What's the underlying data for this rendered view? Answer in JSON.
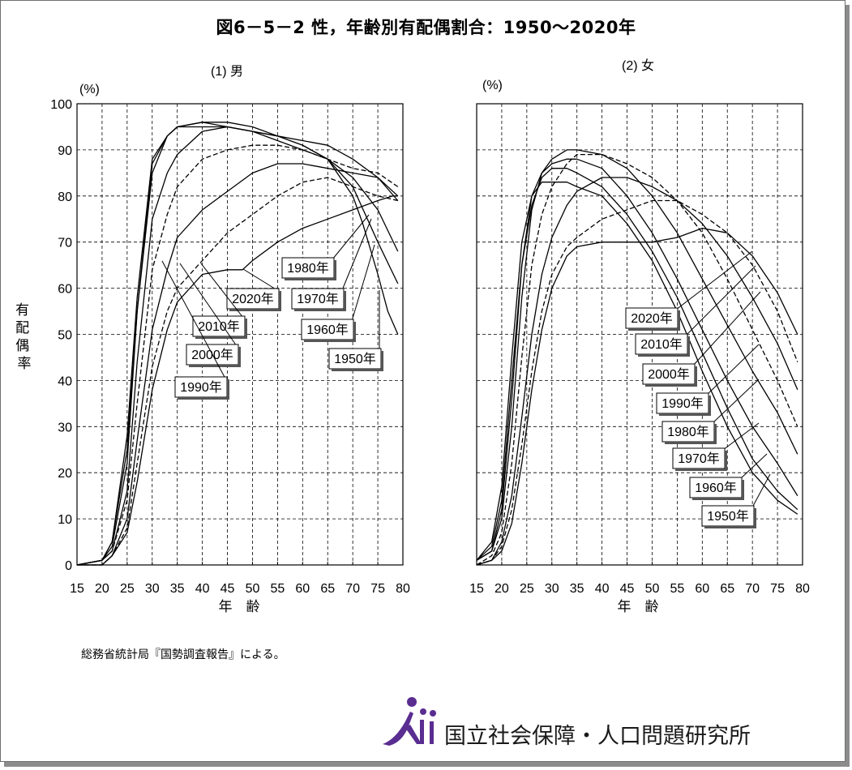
{
  "title": "図6－5－2 性，年齢別有配偶割合：1950～2020年",
  "source_note": "総務省統計局『国勢調査報告』による。",
  "organization": "国立社会保障・人口問題研究所",
  "y_axis_title": "有配偶率",
  "colors": {
    "line": "#000000",
    "grid": "#000000",
    "frame_shadow": "#8c8c8c",
    "logo": "#5a2d91"
  },
  "chart_data": [
    {
      "type": "line",
      "panel_title": "(1) 男",
      "unit_label": "(%)",
      "xlabel": "年　齢",
      "ylabel": "有配偶率",
      "xlim": [
        15,
        80
      ],
      "ylim": [
        0,
        100
      ],
      "x_ticks": [
        15,
        20,
        25,
        30,
        35,
        40,
        45,
        50,
        55,
        60,
        65,
        70,
        75,
        80
      ],
      "y_ticks": [
        0,
        10,
        20,
        30,
        40,
        50,
        60,
        70,
        80,
        90,
        100
      ],
      "grid": true,
      "series": [
        {
          "name": "1950年",
          "style": "solid",
          "x": [
            15,
            20,
            22,
            25,
            27,
            30,
            33,
            35,
            40,
            45,
            50,
            55,
            60,
            65,
            70,
            72,
            75,
            77,
            79
          ],
          "y": [
            0,
            1,
            5,
            28,
            58,
            88,
            93,
            95,
            95,
            95,
            94,
            93,
            91,
            88,
            80,
            74,
            63,
            55,
            50
          ]
        },
        {
          "name": "1960年",
          "style": "solid",
          "x": [
            15,
            20,
            22,
            25,
            27,
            30,
            33,
            35,
            40,
            45,
            50,
            55,
            60,
            65,
            70,
            75,
            79
          ],
          "y": [
            0,
            1,
            5,
            25,
            55,
            85,
            93,
            95,
            96,
            96,
            95,
            93,
            91,
            88,
            82,
            70,
            61
          ]
        },
        {
          "name": "1970年",
          "style": "solid",
          "x": [
            15,
            20,
            22,
            25,
            27,
            30,
            33,
            35,
            40,
            45,
            50,
            55,
            60,
            65,
            70,
            75,
            79
          ],
          "y": [
            0,
            1,
            4,
            22,
            55,
            87,
            93,
            95,
            96,
            95,
            94,
            92,
            90,
            88,
            84,
            77,
            68
          ]
        },
        {
          "name": "1980年",
          "style": "solid",
          "x": [
            15,
            20,
            22,
            25,
            27,
            30,
            33,
            35,
            40,
            45,
            50,
            55,
            60,
            65,
            70,
            75,
            79
          ],
          "y": [
            0,
            1,
            3,
            16,
            44,
            75,
            85,
            89,
            94,
            95,
            94,
            93,
            92,
            91,
            88,
            84,
            79
          ]
        },
        {
          "name": "1990年",
          "style": "dashed",
          "x": [
            15,
            20,
            22,
            25,
            27,
            30,
            33,
            35,
            40,
            45,
            50,
            55,
            60,
            65,
            70,
            75,
            79
          ],
          "y": [
            0,
            1,
            3,
            14,
            35,
            64,
            76,
            82,
            88,
            90,
            91,
            91,
            90,
            88,
            86,
            85,
            82
          ]
        },
        {
          "name": "2000年",
          "style": "solid",
          "x": [
            15,
            20,
            22,
            25,
            27,
            30,
            33,
            35,
            40,
            45,
            50,
            55,
            60,
            65,
            70,
            75,
            79
          ],
          "y": [
            0,
            0,
            2,
            10,
            27,
            51,
            64,
            71,
            77,
            81,
            85,
            87,
            87,
            86,
            85,
            84,
            80
          ]
        },
        {
          "name": "2010年",
          "style": "dashed",
          "x": [
            15,
            20,
            22,
            25,
            27,
            30,
            33,
            35,
            40,
            45,
            50,
            55,
            60,
            65,
            70,
            75,
            79
          ],
          "y": [
            0,
            0,
            2,
            8,
            22,
            43,
            55,
            60,
            66,
            72,
            76,
            80,
            83,
            84,
            82,
            80,
            79
          ]
        },
        {
          "name": "2020年",
          "style": "solid",
          "x": [
            15,
            20,
            22,
            25,
            27,
            30,
            33,
            35,
            40,
            45,
            48,
            50,
            55,
            60,
            65,
            70,
            75,
            78,
            79
          ],
          "y": [
            0,
            0,
            2,
            7,
            18,
            38,
            51,
            57,
            63,
            64,
            64,
            66,
            70,
            73,
            75,
            77,
            79,
            80,
            80
          ]
        }
      ],
      "labels": [
        "1980年",
        "2020年",
        "1970年",
        "2010年",
        "1960年",
        "2000年",
        "1950年",
        "1990年"
      ]
    },
    {
      "type": "line",
      "panel_title": "(2) 女",
      "unit_label": "(%)",
      "xlabel": "年　齢",
      "xlim": [
        15,
        80
      ],
      "ylim": [
        0,
        100
      ],
      "x_ticks": [
        15,
        20,
        25,
        30,
        35,
        40,
        45,
        50,
        55,
        60,
        65,
        70,
        75,
        80
      ],
      "y_ticks": [
        0,
        10,
        20,
        30,
        40,
        50,
        60,
        70,
        80,
        90,
        100
      ],
      "grid": true,
      "series": [
        {
          "name": "1950年",
          "style": "solid",
          "x": [
            15,
            18,
            20,
            22,
            24,
            26,
            28,
            30,
            33,
            35,
            40,
            45,
            50,
            55,
            60,
            65,
            70,
            75,
            79
          ],
          "y": [
            1,
            5,
            17,
            45,
            70,
            80,
            83,
            83,
            83,
            82,
            80,
            74,
            66,
            55,
            42,
            30,
            20,
            14,
            11
          ]
        },
        {
          "name": "1960年",
          "style": "solid",
          "x": [
            15,
            18,
            20,
            22,
            24,
            26,
            28,
            30,
            33,
            35,
            40,
            45,
            50,
            55,
            60,
            65,
            70,
            75,
            79
          ],
          "y": [
            1,
            4,
            14,
            40,
            65,
            78,
            84,
            86,
            86,
            85,
            82,
            76,
            68,
            58,
            46,
            34,
            23,
            16,
            12
          ]
        },
        {
          "name": "1970年",
          "style": "solid",
          "x": [
            15,
            18,
            20,
            22,
            24,
            26,
            28,
            30,
            33,
            35,
            40,
            45,
            50,
            55,
            60,
            65,
            70,
            75,
            79
          ],
          "y": [
            1,
            3,
            12,
            36,
            65,
            80,
            85,
            87,
            88,
            88,
            86,
            80,
            72,
            62,
            51,
            40,
            30,
            22,
            15
          ]
        },
        {
          "name": "1980年",
          "style": "solid",
          "x": [
            15,
            18,
            20,
            22,
            24,
            26,
            28,
            30,
            33,
            35,
            40,
            45,
            50,
            55,
            60,
            65,
            70,
            75,
            79
          ],
          "y": [
            1,
            3,
            10,
            30,
            58,
            77,
            85,
            88,
            90,
            90,
            89,
            86,
            80,
            72,
            62,
            52,
            42,
            33,
            24
          ]
        },
        {
          "name": "1990年",
          "style": "dashed",
          "x": [
            15,
            18,
            20,
            22,
            24,
            26,
            28,
            30,
            33,
            35,
            40,
            45,
            50,
            55,
            60,
            65,
            70,
            75,
            79
          ],
          "y": [
            0,
            2,
            7,
            22,
            45,
            65,
            76,
            82,
            87,
            89,
            89,
            87,
            84,
            79,
            72,
            62,
            51,
            40,
            30
          ]
        },
        {
          "name": "2000年",
          "style": "solid",
          "x": [
            15,
            18,
            20,
            22,
            24,
            26,
            28,
            30,
            33,
            35,
            40,
            45,
            50,
            55,
            60,
            65,
            70,
            75,
            79
          ],
          "y": [
            0,
            1,
            5,
            15,
            32,
            50,
            63,
            71,
            78,
            81,
            84,
            84,
            82,
            79,
            74,
            67,
            58,
            48,
            38
          ]
        },
        {
          "name": "2010年",
          "style": "dashed",
          "x": [
            15,
            18,
            20,
            22,
            24,
            26,
            28,
            30,
            33,
            35,
            40,
            45,
            50,
            55,
            60,
            65,
            70,
            75,
            79
          ],
          "y": [
            0,
            1,
            4,
            12,
            26,
            42,
            55,
            63,
            69,
            71,
            75,
            77,
            79,
            79,
            76,
            72,
            65,
            55,
            44
          ]
        },
        {
          "name": "2020年",
          "style": "solid",
          "x": [
            15,
            18,
            20,
            22,
            24,
            26,
            28,
            30,
            33,
            35,
            40,
            45,
            50,
            55,
            60,
            65,
            70,
            75,
            79
          ],
          "y": [
            0,
            1,
            3,
            9,
            22,
            38,
            51,
            60,
            67,
            69,
            70,
            70,
            70,
            71,
            73,
            72,
            67,
            59,
            50
          ]
        }
      ],
      "labels": [
        "2020年",
        "2010年",
        "2000年",
        "1990年",
        "1980年",
        "1970年",
        "1960年",
        "1950年"
      ]
    }
  ]
}
